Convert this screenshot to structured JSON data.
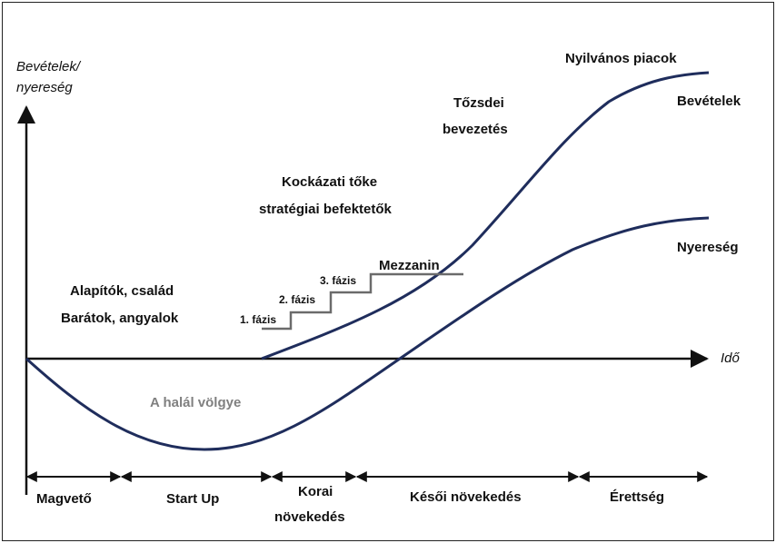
{
  "axes": {
    "y_label_line1": "Bevételek/",
    "y_label_line2": "nyereség",
    "x_label": "Idő"
  },
  "curves": {
    "revenue_label": "Bevételek",
    "profit_label": "Nyereség"
  },
  "annotations": {
    "founders_line1": "Alapítók, család",
    "founders_line2": "Barátok, angyalok",
    "vc_line1": "Kockázati tőke",
    "vc_line2": "stratégiai befektetők",
    "ipo_line1": "Tőzsdei",
    "ipo_line2": "bevezetés",
    "public_markets": "Nyilvános piacok",
    "valley_of_death": "A halál völgye",
    "mezzanine": "Mezzanin"
  },
  "phases": {
    "phase1": "1. fázis",
    "phase2": "2. fázis",
    "phase3": "3. fázis"
  },
  "stages": [
    {
      "label": "Magvető"
    },
    {
      "label": "Start Up"
    },
    {
      "label_line1": "Korai",
      "label_line2": "növekedés"
    },
    {
      "label": "Késői növekedés"
    },
    {
      "label": "Érettség"
    }
  ],
  "colors": {
    "curve": "#1f2d5c",
    "axis": "#111111",
    "steps": "#6b6b6b",
    "valley_text": "#808080"
  }
}
